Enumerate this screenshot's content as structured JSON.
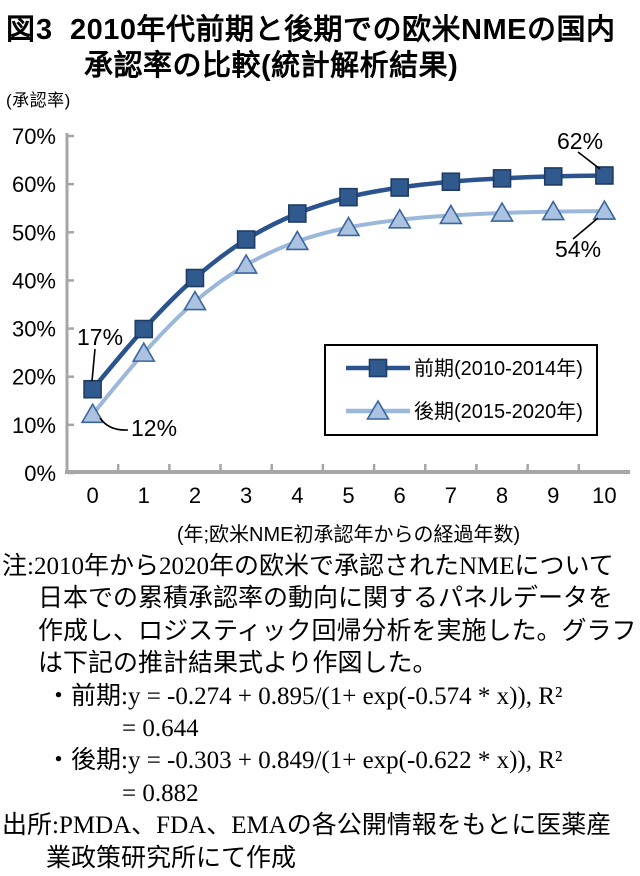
{
  "figure": {
    "label": "図3",
    "title_line1": "2010年代前期と後期での欧米NMEの国内",
    "title_line2": "承認率の比較(統計解析結果)"
  },
  "chart_data": {
    "type": "line",
    "y_axis_unit": "(承認率)",
    "xlabel": "(年;欧米NME初承認年からの経過年数)",
    "x": [
      0,
      1,
      2,
      3,
      4,
      5,
      6,
      7,
      8,
      9,
      10
    ],
    "series": [
      {
        "name": "前期(2010-2014年)",
        "values": [
          17.4,
          29.9,
          40.5,
          48.5,
          53.9,
          57.3,
          59.3,
          60.5,
          61.2,
          61.6,
          61.8
        ],
        "color": "#2B548E",
        "marker": "square",
        "marker_fill": "#30598E",
        "marker_edge": "#1F3C64"
      },
      {
        "name": "後期(2015-2020年)",
        "values": [
          12.2,
          24.9,
          35.6,
          43.2,
          48.1,
          51.0,
          52.6,
          53.5,
          54.0,
          54.3,
          54.4
        ],
        "color": "#9BB7DA",
        "marker": "triangle",
        "marker_fill": "#ABC3E1",
        "marker_edge": "#3A659E"
      }
    ],
    "ylim": [
      0,
      70
    ],
    "y_tick_step": 10,
    "y_tick_suffix": "%",
    "grid": false,
    "legend_position": "inside-bottom-right",
    "axis_color": "#A6A6A6",
    "annotations": [
      {
        "label": "62%",
        "series": "前期(2010-2014年)",
        "x": 10
      },
      {
        "label": "54%",
        "series": "後期(2015-2020年)",
        "x": 10
      },
      {
        "label": "17%",
        "series": "前期(2010-2014年)",
        "x": 0
      },
      {
        "label": "12%",
        "series": "後期(2015-2020年)",
        "x": 0
      }
    ]
  },
  "notes": {
    "lines": [
      "注:2010年から2020年の欧米で承認されたNMEについて",
      "日本での累積承認率の動向に関するパネルデータを",
      "作成し、ロジスティック回帰分析を実施した。グラフ",
      "は下記の推計結果式より作図した。",
      "・前期:y = -0.274 + 0.895/(1+ exp(-0.574 * x)), R²",
      "= 0.644",
      "・後期:y = -0.303 + 0.849/(1+ exp(-0.622 * x)), R²",
      "= 0.882",
      "出所:PMDA、FDA、EMAの各公開情報をもとに医薬産",
      "業政策研究所にて作成"
    ]
  }
}
